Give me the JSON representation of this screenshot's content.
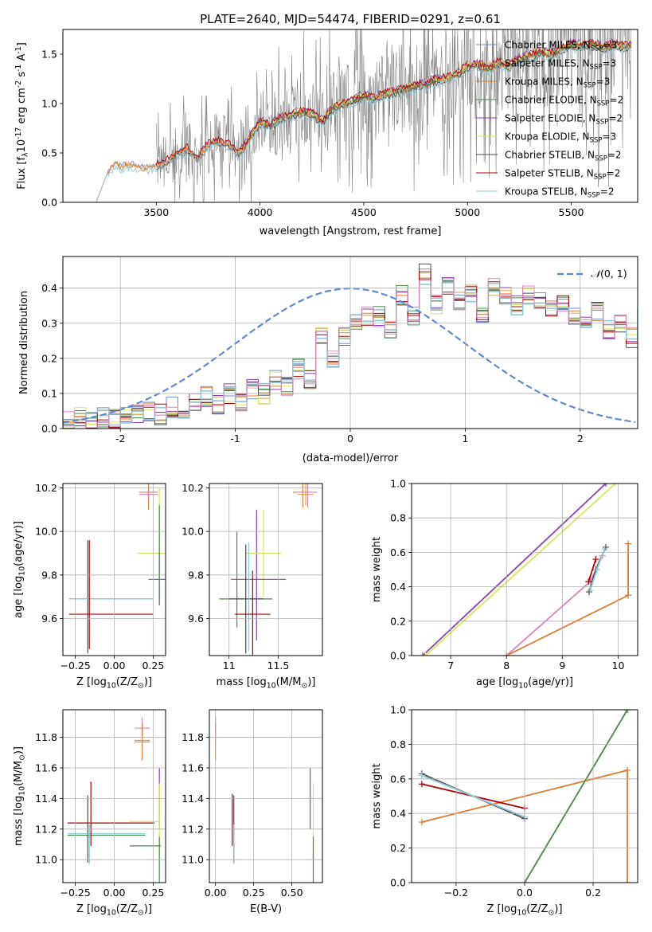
{
  "figure_title": "PLATE=2640, MJD=54474, FIBERID=0291, z=0.61",
  "colors": {
    "chabrier_miles": "#6a8fd0",
    "salpeter_miles": "#e0a050",
    "kroupa_miles": "#e07b30",
    "chabrier_elodie": "#4a8a50",
    "salpeter_elodie": "#8e3fb0",
    "kroupa_elodie": "#d8e65a",
    "chabrier_stelib": "#4c4c4c",
    "salpeter_stelib": "#b00000",
    "kroupa_stelib": "#8ec9dc",
    "pink": "#e080c0",
    "normal_curve": "#5b8bd6",
    "data_spectrum": "#808080"
  },
  "chart_data": [
    {
      "type": "line",
      "panel": "spectrum",
      "xlabel": "wavelength [Angstrom, rest frame]",
      "ylabel": "Flux [f$_\\lambda$10$^{-17}$ erg cm$^{-2}$ s$^{-1}$ A$^{-1}$]",
      "xlim": [
        3050,
        5820
      ],
      "ylim": [
        0,
        1.75
      ],
      "xticks": [
        3500,
        4000,
        4500,
        5000,
        5500
      ],
      "yticks": [
        0.0,
        0.5,
        1.0,
        1.5
      ],
      "grid": false,
      "legend_position": "top-right",
      "legend": [
        {
          "label": "Chabrier MILES, N",
          "sub": "SSP",
          "suffix": "=3",
          "color_key": "chabrier_miles"
        },
        {
          "label": "Salpeter MILES, N",
          "sub": "SSP",
          "suffix": "=3",
          "color_key": "salpeter_miles"
        },
        {
          "label": "Kroupa MILES, N",
          "sub": "SSP",
          "suffix": "=3",
          "color_key": "kroupa_miles"
        },
        {
          "label": "Chabrier ELODIE, N",
          "sub": "SSP",
          "suffix": "=2",
          "color_key": "chabrier_elodie"
        },
        {
          "label": "Salpeter ELODIE, N",
          "sub": "SSP",
          "suffix": "=2",
          "color_key": "salpeter_elodie"
        },
        {
          "label": "Kroupa ELODIE, N",
          "sub": "SSP",
          "suffix": "=3",
          "color_key": "kroupa_elodie"
        },
        {
          "label": "Chabrier STELIB, N",
          "sub": "SSP",
          "suffix": "=2",
          "color_key": "chabrier_stelib"
        },
        {
          "label": "Salpeter STELIB, N",
          "sub": "SSP",
          "suffix": "=2",
          "color_key": "salpeter_stelib"
        },
        {
          "label": "Kroupa STELIB, N",
          "sub": "SSP",
          "suffix": "=2",
          "color_key": "kroupa_stelib"
        }
      ],
      "model_curve": {
        "x": [
          3260,
          3280,
          3300,
          3330,
          3360,
          3400,
          3450,
          3500,
          3550,
          3600,
          3650,
          3700,
          3750,
          3800,
          3850,
          3900,
          3950,
          4000,
          4050,
          4100,
          4150,
          4200,
          4250,
          4300,
          4350,
          4400,
          4450,
          4500,
          4550,
          4600,
          4650,
          4700,
          4750,
          4800,
          4850,
          4900,
          4950,
          5000,
          5050,
          5100,
          5150,
          5200,
          5250,
          5300,
          5350,
          5400,
          5450,
          5500,
          5550,
          5600,
          5650,
          5700,
          5750,
          5790
        ],
        "y": [
          0.28,
          0.35,
          0.4,
          0.37,
          0.4,
          0.38,
          0.36,
          0.38,
          0.42,
          0.5,
          0.55,
          0.45,
          0.6,
          0.62,
          0.6,
          0.5,
          0.65,
          0.82,
          0.78,
          0.86,
          0.88,
          0.92,
          0.9,
          0.82,
          0.95,
          1.0,
          1.03,
          1.08,
          1.05,
          1.1,
          1.12,
          1.15,
          1.18,
          1.2,
          1.24,
          1.26,
          1.3,
          1.38,
          1.4,
          1.35,
          1.42,
          1.38,
          1.45,
          1.48,
          1.52,
          1.5,
          1.55,
          1.6,
          1.58,
          1.62,
          1.56,
          1.6,
          1.58,
          1.6
        ]
      },
      "model_offsets": [
        0.0,
        -0.01,
        -0.02,
        0.0,
        0.03,
        0.02,
        -0.03,
        0.02,
        -0.05
      ],
      "noisy_data_range": {
        "x": [
          3500,
          5790
        ],
        "ylim_clip": [
          0,
          1.75
        ]
      }
    },
    {
      "type": "bar",
      "panel": "residual_histogram",
      "xlabel": "(data-model)/error",
      "ylabel": "Normed distribution",
      "xlim": [
        -2.5,
        2.5
      ],
      "ylim": [
        0,
        0.49
      ],
      "xticks": [
        -2,
        -1,
        0,
        1,
        2
      ],
      "yticks": [
        0.0,
        0.1,
        0.2,
        0.3,
        0.4
      ],
      "grid": true,
      "legend_position": "top-right",
      "legend_label": "$\\mathcal{N}(0,1)$",
      "bin_width": 0.1,
      "bin_start": -2.5,
      "base_distribution": [
        0.02,
        0.03,
        0.02,
        0.03,
        0.03,
        0.04,
        0.04,
        0.05,
        0.04,
        0.06,
        0.05,
        0.07,
        0.09,
        0.07,
        0.1,
        0.08,
        0.11,
        0.1,
        0.14,
        0.12,
        0.17,
        0.14,
        0.26,
        0.2,
        0.26,
        0.3,
        0.32,
        0.32,
        0.28,
        0.38,
        0.32,
        0.44,
        0.35,
        0.4,
        0.36,
        0.38,
        0.33,
        0.4,
        0.38,
        0.35,
        0.38,
        0.37,
        0.34,
        0.35,
        0.32,
        0.3,
        0.33,
        0.28,
        0.3,
        0.26,
        0.35,
        0.23,
        0.3,
        0.24,
        0.27,
        0.15,
        0.2,
        0.14,
        0.16,
        0.12,
        0.14,
        0.09,
        0.12,
        0.08,
        0.1,
        0.07,
        0.09,
        0.06,
        0.08,
        0.06,
        0.1,
        0.05,
        0.08,
        0.04,
        0.07,
        0.05,
        0.06,
        0.04,
        0.07,
        0.05
      ],
      "series_perturbation_seed": 7
    },
    {
      "type": "scatter",
      "panel": "age_vs_Z",
      "xlabel": "Z [log$_{10}$(Z/Z$_\\odot$)]",
      "ylabel": "age  [log$_{10}$(age/yr)]",
      "xlim": [
        -0.33,
        0.33
      ],
      "ylim": [
        9.43,
        10.22
      ],
      "xticks": [
        -0.25,
        0.0,
        0.25
      ],
      "xtick_labels": [
        "−0.25",
        "0.00",
        "0.25"
      ],
      "yticks": [
        9.6,
        9.8,
        10.0,
        10.2
      ],
      "grid": true,
      "crosses": [
        {
          "color_key": "kroupa_miles",
          "x": 0.22,
          "xerr": 0.06,
          "y": 10.18,
          "yerr": 0.08
        },
        {
          "color_key": "pink",
          "x": 0.22,
          "xerr": 0.06,
          "y": 10.17,
          "yerr": 0.02
        },
        {
          "color_key": "kroupa_elodie",
          "x": 0.26,
          "xerr": 0.11,
          "y": 9.9,
          "yerr": 0.0
        },
        {
          "color_key": "kroupa_elodie",
          "x": 0.29,
          "xerr": 0.0,
          "y": 10.05,
          "yerr": 0.15
        },
        {
          "color_key": "salpeter_elodie",
          "x": 0.29,
          "xerr": 0.07,
          "y": 9.78,
          "yerr": 0.12
        },
        {
          "color_key": "chabrier_elodie",
          "x": 0.29,
          "xerr": 0.0,
          "y": 9.9,
          "yerr": 0.22
        },
        {
          "color_key": "chabrier_stelib",
          "x": -0.17,
          "xerr": 0.0,
          "y": 9.7,
          "yerr": 0.26
        },
        {
          "color_key": "chabrier_elodie",
          "x": -0.02,
          "xerr": 0.27,
          "y": 9.69,
          "yerr": 0.0
        },
        {
          "color_key": "kroupa_stelib",
          "x": -0.02,
          "xerr": 0.27,
          "y": 9.69,
          "yerr": 0.0
        },
        {
          "color_key": "salpeter_stelib",
          "x": -0.02,
          "xerr": 0.27,
          "y": 9.62,
          "yerr": 0.0
        },
        {
          "color_key": "salpeter_stelib",
          "x": -0.16,
          "xerr": 0.0,
          "y": 9.71,
          "yerr": 0.25
        }
      ]
    },
    {
      "type": "scatter",
      "panel": "age_vs_mass",
      "xlabel": "mass [log$_{10}$(M/M$_\\odot$)]",
      "ylabel": "",
      "xlim": [
        10.8,
        11.95
      ],
      "ylim": [
        9.43,
        10.22
      ],
      "xticks": [
        11.0,
        11.5
      ],
      "yticks": [
        9.6,
        9.8,
        10.0,
        10.2
      ],
      "grid": true,
      "crosses": [
        {
          "color_key": "kroupa_miles",
          "x": 11.75,
          "xerr": 0.1,
          "y": 10.18,
          "yerr": 0.07
        },
        {
          "color_key": "salpeter_miles",
          "x": 11.78,
          "xerr": 0.08,
          "y": 10.17,
          "yerr": 0.05
        },
        {
          "color_key": "pink",
          "x": 11.8,
          "xerr": 0.1,
          "y": 10.18,
          "yerr": 0.07
        },
        {
          "color_key": "salpeter_elodie",
          "x": 11.28,
          "xerr": 0.0,
          "y": 9.8,
          "yerr": 0.3
        },
        {
          "color_key": "kroupa_elodie",
          "x": 11.35,
          "xerr": 0.18,
          "y": 9.9,
          "yerr": 0.2
        },
        {
          "color_key": "chabrier_elodie",
          "x": 11.08,
          "xerr": 0.0,
          "y": 9.78,
          "yerr": 0.22
        },
        {
          "color_key": "salpeter_elodie",
          "x": 11.3,
          "xerr": 0.28,
          "y": 9.78,
          "yerr": 0.0
        },
        {
          "color_key": "chabrier_elodie",
          "x": 11.17,
          "xerr": 0.27,
          "y": 9.69,
          "yerr": 0.0
        },
        {
          "color_key": "chabrier_stelib",
          "x": 11.17,
          "xerr": 0.18,
          "y": 9.69,
          "yerr": 0.25
        },
        {
          "color_key": "kroupa_stelib",
          "x": 11.2,
          "xerr": 0.0,
          "y": 9.7,
          "yerr": 0.25
        },
        {
          "color_key": "salpeter_stelib",
          "x": 11.24,
          "xerr": 0.18,
          "y": 9.62,
          "yerr": 0.2
        }
      ]
    },
    {
      "type": "line",
      "panel": "mass_weight_vs_age",
      "xlabel": "age  [log$_{10}$(age/yr)]",
      "ylabel": "mass weight",
      "xlim": [
        6.3,
        10.35
      ],
      "ylim": [
        0,
        1.0
      ],
      "xticks": [
        7,
        8,
        9,
        10
      ],
      "yticks": [
        0.0,
        0.2,
        0.4,
        0.6,
        0.8,
        1.0
      ],
      "grid": true,
      "series": [
        {
          "color_key": "salpeter_elodie",
          "x": [
            6.5,
            9.78
          ],
          "y": [
            0.0,
            1.0
          ]
        },
        {
          "color_key": "kroupa_elodie",
          "x": [
            6.55,
            9.95
          ],
          "y": [
            0.0,
            1.0
          ]
        },
        {
          "color_key": "pink",
          "x": [
            8.0,
            9.5,
            9.72
          ],
          "y": [
            0.0,
            0.43,
            0.58
          ]
        },
        {
          "color_key": "kroupa_miles",
          "x": [
            8.0,
            10.18
          ],
          "y": [
            0.0,
            0.35
          ]
        },
        {
          "color_key": "kroupa_miles",
          "x": [
            10.18,
            10.18
          ],
          "y": [
            0.35,
            0.65
          ]
        },
        {
          "color_key": "salpeter_stelib",
          "x": [
            9.47,
            9.6
          ],
          "y": [
            0.43,
            0.56
          ]
        },
        {
          "color_key": "chabrier_stelib",
          "x": [
            9.48,
            9.6,
            9.78
          ],
          "y": [
            0.37,
            0.5,
            0.63
          ]
        },
        {
          "color_key": "kroupa_stelib",
          "x": [
            9.5,
            9.62,
            9.76
          ],
          "y": [
            0.38,
            0.5,
            0.62
          ]
        }
      ]
    },
    {
      "type": "scatter",
      "panel": "mass_vs_Z",
      "xlabel": "Z [log$_{10}$(Z/Z$_\\odot$)]",
      "ylabel": "mass [log$_{10}$(M/M$_\\odot$)]",
      "xlim": [
        -0.33,
        0.33
      ],
      "ylim": [
        10.85,
        11.98
      ],
      "xticks": [
        -0.25,
        0.0,
        0.25
      ],
      "xtick_labels": [
        "−0.25",
        "0.00",
        "0.25"
      ],
      "yticks": [
        11.0,
        11.2,
        11.4,
        11.6,
        11.8
      ],
      "grid": true,
      "crosses": [
        {
          "color_key": "pink",
          "x": 0.18,
          "xerr": 0.05,
          "y": 11.86,
          "yerr": 0.07
        },
        {
          "color_key": "kroupa_miles",
          "x": 0.18,
          "xerr": 0.05,
          "y": 11.77,
          "yerr": 0.12
        },
        {
          "color_key": "salpeter_miles",
          "x": 0.18,
          "xerr": 0.05,
          "y": 11.78,
          "yerr": 0.0
        },
        {
          "color_key": "salpeter_elodie",
          "x": 0.29,
          "xerr": 0.0,
          "y": 11.4,
          "yerr": 0.2
        },
        {
          "color_key": "kroupa_elodie",
          "x": 0.2,
          "xerr": 0.1,
          "y": 11.25,
          "yerr": 0.0
        },
        {
          "color_key": "kroupa_elodie",
          "x": 0.29,
          "xerr": 0.0,
          "y": 11.25,
          "yerr": 0.25
        },
        {
          "color_key": "chabrier_elodie",
          "x": 0.2,
          "xerr": 0.1,
          "y": 11.09,
          "yerr": 0.0
        },
        {
          "color_key": "chabrier_elodie",
          "x": 0.29,
          "xerr": 0.0,
          "y": 11.0,
          "yerr": 0.15
        },
        {
          "color_key": "chabrier_stelib",
          "x": -0.17,
          "xerr": 0.0,
          "y": 11.2,
          "yerr": 0.22
        },
        {
          "color_key": "chabrier_elodie",
          "x": -0.05,
          "xerr": 0.25,
          "y": 11.16,
          "yerr": 0.0
        },
        {
          "color_key": "kroupa_stelib",
          "x": -0.05,
          "xerr": 0.25,
          "y": 11.17,
          "yerr": 0.0
        },
        {
          "color_key": "kroupa_stelib",
          "x": -0.16,
          "xerr": 0.0,
          "y": 11.1,
          "yerr": 0.13
        },
        {
          "color_key": "salpeter_stelib",
          "x": -0.02,
          "xerr": 0.28,
          "y": 11.24,
          "yerr": 0.0
        },
        {
          "color_key": "salpeter_stelib",
          "x": -0.15,
          "xerr": 0.0,
          "y": 11.3,
          "yerr": 0.21
        }
      ]
    },
    {
      "type": "scatter",
      "panel": "mass_vs_EBV",
      "xlabel": "E(B-V)",
      "ylabel": "",
      "xlim": [
        -0.04,
        0.7
      ],
      "ylim": [
        10.85,
        11.98
      ],
      "xticks": [
        0.0,
        0.25,
        0.5
      ],
      "xtick_labels": [
        "0.00",
        "0.25",
        "0.50"
      ],
      "yticks": [
        11.0,
        11.2,
        11.4,
        11.6,
        11.8
      ],
      "grid": true,
      "crosses": [
        {
          "color_key": "pink",
          "x": 0.0,
          "xerr": 0.0,
          "y": 11.86,
          "yerr": 0.08
        },
        {
          "color_key": "kroupa_miles",
          "x": 0.0,
          "xerr": 0.0,
          "y": 11.77,
          "yerr": 0.12
        },
        {
          "color_key": "salpeter_stelib",
          "x": 0.11,
          "xerr": 0.0,
          "y": 11.26,
          "yerr": 0.17
        },
        {
          "color_key": "chabrier_stelib",
          "x": 0.12,
          "xerr": 0.0,
          "y": 11.2,
          "yerr": 0.22
        },
        {
          "color_key": "kroupa_stelib",
          "x": 0.12,
          "xerr": 0.0,
          "y": 11.1,
          "yerr": 0.13
        },
        {
          "color_key": "salpeter_elodie",
          "x": 0.62,
          "xerr": 0.0,
          "y": 11.4,
          "yerr": 0.2
        },
        {
          "color_key": "kroupa_elodie",
          "x": 0.64,
          "xerr": 0.0,
          "y": 11.25,
          "yerr": 0.25
        },
        {
          "color_key": "chabrier_elodie",
          "x": 0.64,
          "xerr": 0.0,
          "y": 11.0,
          "yerr": 0.15
        }
      ]
    },
    {
      "type": "line",
      "panel": "mass_weight_vs_Z",
      "xlabel": "Z [log$_{10}$(Z/Z$_\\odot$)]",
      "ylabel": "mass weight",
      "xlim": [
        -0.33,
        0.33
      ],
      "ylim": [
        0,
        1.0
      ],
      "xticks": [
        -0.2,
        0.0,
        0.2
      ],
      "xtick_labels": [
        "−0.2",
        "0.0",
        "0.2"
      ],
      "yticks": [
        0.0,
        0.2,
        0.4,
        0.6,
        0.8,
        1.0
      ],
      "grid": true,
      "series": [
        {
          "color_key": "kroupa_miles",
          "x": [
            -0.3,
            0.3
          ],
          "y": [
            0.35,
            0.65
          ]
        },
        {
          "color_key": "kroupa_miles",
          "x": [
            0.3,
            0.3
          ],
          "y": [
            0.0,
            0.65
          ]
        },
        {
          "color_key": "salpeter_stelib",
          "x": [
            -0.3,
            0.0
          ],
          "y": [
            0.57,
            0.43
          ]
        },
        {
          "color_key": "chabrier_stelib",
          "x": [
            -0.3,
            0.0
          ],
          "y": [
            0.63,
            0.37
          ]
        },
        {
          "color_key": "kroupa_stelib",
          "x": [
            -0.3,
            0.0
          ],
          "y": [
            0.62,
            0.38
          ]
        },
        {
          "color_key": "kroupa_elodie",
          "x": [
            0.0,
            0.3
          ],
          "y": [
            0.0,
            1.0
          ]
        },
        {
          "color_key": "chabrier_elodie",
          "x": [
            0.0,
            0.3
          ],
          "y": [
            0.0,
            1.0
          ]
        }
      ]
    }
  ]
}
